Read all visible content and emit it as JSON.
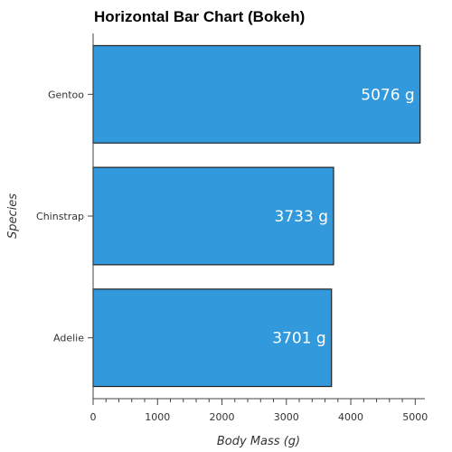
{
  "chart_data": {
    "type": "bar",
    "orientation": "horizontal",
    "title": "Horizontal Bar Chart (Bokeh)",
    "xlabel": "Body Mass (g)",
    "ylabel": "Species",
    "categories": [
      "Gentoo",
      "Chinstrap",
      "Adelie"
    ],
    "values": [
      5076,
      3733,
      3701
    ],
    "data_labels": [
      "5076 g",
      "3733 g",
      "3701 g"
    ],
    "xlim": [
      0,
      5150
    ],
    "x_ticks": [
      0,
      1000,
      2000,
      3000,
      4000,
      5000
    ],
    "x_tick_labels": [
      "0",
      "1000",
      "2000",
      "3000",
      "4000",
      "5000"
    ],
    "grid": false,
    "bar_color": "#3399dd",
    "bar_edge_color": "#222222"
  }
}
